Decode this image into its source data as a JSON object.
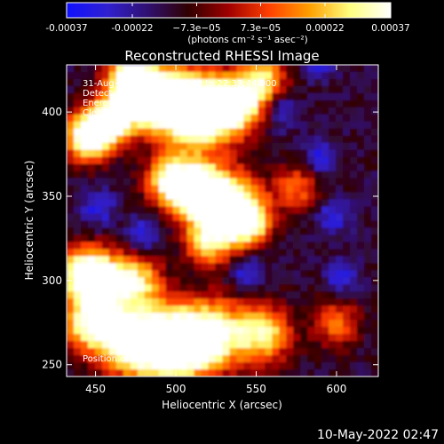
{
  "colorbar": {
    "tick_labels": [
      "-0.00037",
      "-0.00022",
      "−7.3e−05",
      "7.3e−05",
      "0.00022",
      "0.00037"
    ],
    "tick_values": [
      -0.00037,
      -0.00022,
      -7.3e-05,
      7.3e-05,
      0.00022,
      0.00037
    ],
    "range": [
      -0.00037,
      0.00037
    ],
    "units": "(photons cm⁻² s⁻¹ asec⁻²)",
    "colors": [
      "#1010ff",
      "#3020d0",
      "#301070",
      "#300000",
      "#a00000",
      "#ff4000",
      "#ffa000",
      "#ffff80",
      "#ffffff"
    ]
  },
  "chart_data": {
    "type": "heatmap",
    "title": "Reconstructed RHESSI Image",
    "xlabel": "Heliocentric X (arcsec)",
    "ylabel": "Heliocentric Y (arcsec)",
    "xlim": [
      432,
      626
    ],
    "ylim": [
      243,
      428
    ],
    "x_ticks": [
      450,
      500,
      550,
      600
    ],
    "y_ticks": [
      250,
      300,
      350,
      400
    ],
    "grid": false,
    "peak_position": [
      498,
      262
    ],
    "palette": [
      "#1010ff",
      "#3020d0",
      "#301070",
      "#300000",
      "#a00000",
      "#ff4000",
      "#ffa000",
      "#ffff80",
      "#ffffff"
    ],
    "annotations": [
      "31-Aug-2010 22:30:32.000 to 22:33:44.000",
      "Detectors: 3F 4F 5F 6F 7F 8F, Att 0",
      "Energy Range: 12.0 − 25.0 keV",
      "Clean    Total Counts: 2.71E+03",
      "Position of Peak = [498,262]"
    ]
  },
  "footer": {
    "timestamp": "10-May-2022 02:47"
  }
}
